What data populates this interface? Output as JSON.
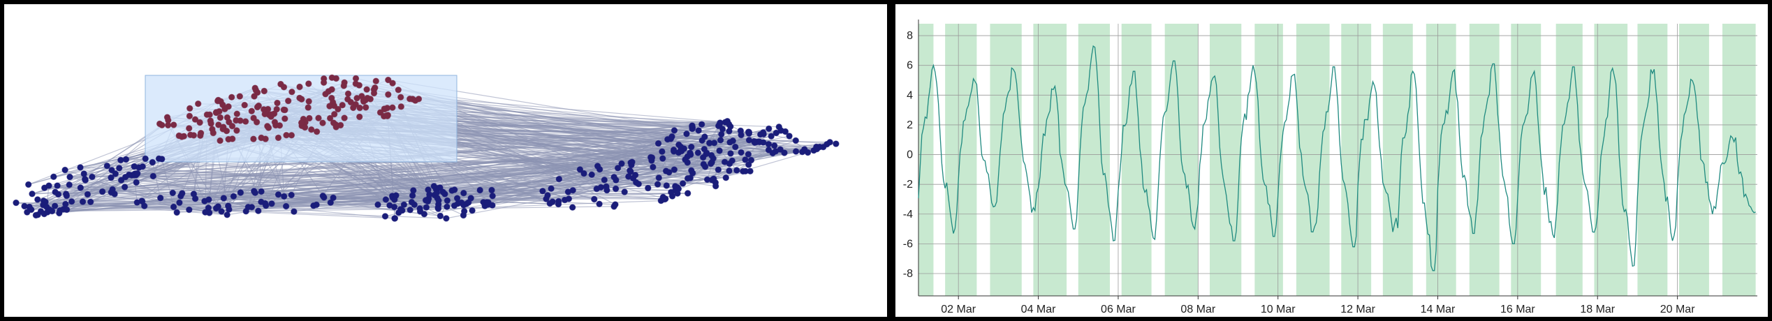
{
  "colors": {
    "node_cluster_a": "#1a1d7a",
    "node_cluster_b": "#7a2a45",
    "edge": "#8c93b3",
    "selection_fill": "#cfe3fb",
    "selection_stroke": "#8fb4de",
    "band_fill": "#c8e9d0",
    "line": "#1f8a80",
    "grid": "#9a9a9a"
  },
  "chart_data": [
    {
      "type": "network",
      "title": "",
      "description_visible": "node-link graph with a highlighted selection rectangle",
      "clusters": [
        {
          "color": "node_cluster_b",
          "role": "selected"
        },
        {
          "color": "node_cluster_a",
          "role": "unselected"
        }
      ]
    },
    {
      "type": "line",
      "title": "",
      "xlabel": "",
      "ylabel": "",
      "ylim": [
        -9.5,
        8.8
      ],
      "y_ticks": [
        "8",
        "6",
        "4",
        "2",
        "0",
        "-2",
        "-4",
        "-6",
        "-8"
      ],
      "x_ticks": [
        "02 Mar",
        "04 Mar",
        "06 Mar",
        "08 Mar",
        "10 Mar",
        "12 Mar",
        "14 Mar",
        "16 Mar",
        "18 Mar",
        "20 Mar"
      ],
      "x_range_days": [
        "2023-03-01",
        "2023-03-21"
      ],
      "grid": true,
      "series": [
        {
          "x": [
            "2023-03-01",
            "2023-03-02",
            "2023-03-03",
            "2023-03-04",
            "2023-03-05",
            "2023-03-06",
            "2023-03-07",
            "2023-03-08",
            "2023-03-09",
            "2023-03-10",
            "2023-03-11",
            "2023-03-12",
            "2023-03-13",
            "2023-03-14",
            "2023-03-15",
            "2023-03-16",
            "2023-03-17",
            "2023-03-18",
            "2023-03-19",
            "2023-03-20",
            "2023-03-21"
          ],
          "peaks": [
            6.0,
            5.1,
            6.0,
            4.6,
            7.3,
            5.6,
            6.3,
            5.6,
            6.0,
            5.4,
            5.9,
            5.1,
            5.6,
            5.7,
            6.1,
            5.6,
            5.9,
            5.8,
            5.8,
            5.2,
            1.3
          ],
          "troughs": [
            -5.3,
            -3.6,
            -3.9,
            -5.0,
            -5.8,
            -5.7,
            -5.0,
            -5.8,
            -5.5,
            -5.2,
            -6.2,
            -5.2,
            -7.8,
            -5.3,
            -6.0,
            -5.6,
            -5.5,
            -7.5,
            -5.8,
            -4.0,
            -3.9
          ]
        }
      ],
      "shaded_bands": [
        [
          "2023-03-01T00:00",
          "2023-03-01T09:00"
        ],
        [
          "2023-03-01T16:00",
          "2023-03-02T11:00"
        ],
        [
          "2023-03-02T19:00",
          "2023-03-03T14:00"
        ],
        [
          "2023-03-03T21:00",
          "2023-03-04T17:00"
        ],
        [
          "2023-03-05T00:00",
          "2023-03-05T19:00"
        ],
        [
          "2023-03-06T02:00",
          "2023-03-06T20:00"
        ],
        [
          "2023-03-07T04:00",
          "2023-03-08T00:00"
        ],
        [
          "2023-03-08T07:00",
          "2023-03-09T02:00"
        ],
        [
          "2023-03-09T10:00",
          "2023-03-10T03:00"
        ],
        [
          "2023-03-10T11:00",
          "2023-03-11T07:00"
        ],
        [
          "2023-03-11T14:00",
          "2023-03-12T08:00"
        ],
        [
          "2023-03-12T15:00",
          "2023-03-13T09:00"
        ],
        [
          "2023-03-13T17:00",
          "2023-03-14T11:00"
        ],
        [
          "2023-03-14T19:00",
          "2023-03-15T13:00"
        ],
        [
          "2023-03-15T20:00",
          "2023-03-16T14:00"
        ],
        [
          "2023-03-16T23:00",
          "2023-03-17T15:00"
        ],
        [
          "2023-03-17T22:00",
          "2023-03-18T18:00"
        ],
        [
          "2023-03-19T00:00",
          "2023-03-19T18:00"
        ],
        [
          "2023-03-20T01:00",
          "2023-03-20T19:00"
        ],
        [
          "2023-03-21T03:00",
          "2023-03-21T23:00"
        ]
      ]
    }
  ]
}
